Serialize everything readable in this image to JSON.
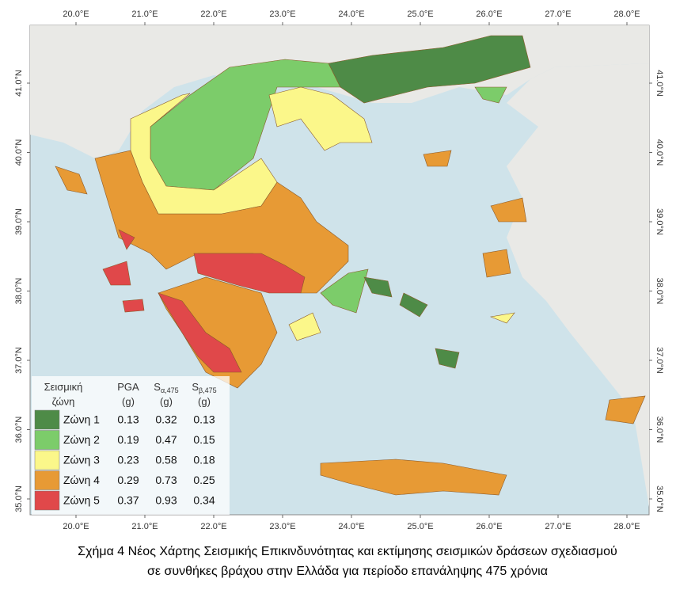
{
  "map": {
    "lon_ticks": [
      {
        "value": 20,
        "label": "20.0°E"
      },
      {
        "value": 21,
        "label": "21.0°E"
      },
      {
        "value": 22,
        "label": "22.0°E"
      },
      {
        "value": 23,
        "label": "23.0°E"
      },
      {
        "value": 24,
        "label": "24.0°E"
      },
      {
        "value": 25,
        "label": "25.0°E"
      },
      {
        "value": 26,
        "label": "26.0°E"
      },
      {
        "value": 27,
        "label": "27.0°E"
      },
      {
        "value": 28,
        "label": "28.0°E"
      }
    ],
    "lat_ticks": [
      {
        "value": 35,
        "label": "35.0°N"
      },
      {
        "value": 36,
        "label": "36.0°N"
      },
      {
        "value": 37,
        "label": "37.0°N"
      },
      {
        "value": 38,
        "label": "38.0°N"
      },
      {
        "value": 39,
        "label": "39.0°N"
      },
      {
        "value": 40,
        "label": "40.0°N"
      },
      {
        "value": 41,
        "label": "41.0°N"
      }
    ]
  },
  "legend": {
    "headers": [
      {
        "line1": "Σεισμική",
        "line2": "ζώνη"
      },
      {
        "line1": "PGA",
        "line2": "(g)"
      },
      {
        "line1": "S",
        "sub": "α,475",
        "line2": "(g)"
      },
      {
        "line1": "S",
        "sub": "β,475",
        "line2": "(g)"
      }
    ],
    "rows": [
      {
        "color": "#4e8b47",
        "cells": [
          "Ζώνη 1",
          "0.13",
          "0.32",
          "0.13"
        ]
      },
      {
        "color": "#7ccc6a",
        "cells": [
          "Ζώνη 2",
          "0.19",
          "0.47",
          "0.15"
        ]
      },
      {
        "color": "#fbf78a",
        "cells": [
          "Ζώνη 3",
          "0.23",
          "0.58",
          "0.18"
        ]
      },
      {
        "color": "#e79a35",
        "cells": [
          "Ζώνη 4",
          "0.29",
          "0.73",
          "0.25"
        ]
      },
      {
        "color": "#e0484a",
        "cells": [
          "Ζώνη 5",
          "0.37",
          "0.93",
          "0.34"
        ]
      }
    ]
  },
  "caption": [
    "Σχήμα 4 Νέος Χάρτης Σεισμικής Επικινδυνότητας και εκτίμησης σεισμικών δράσεων σχεδιασμού",
    "σε συνθήκες βράχου στην Ελλάδα για περίοδο επανάληψης 475 χρόνια"
  ]
}
